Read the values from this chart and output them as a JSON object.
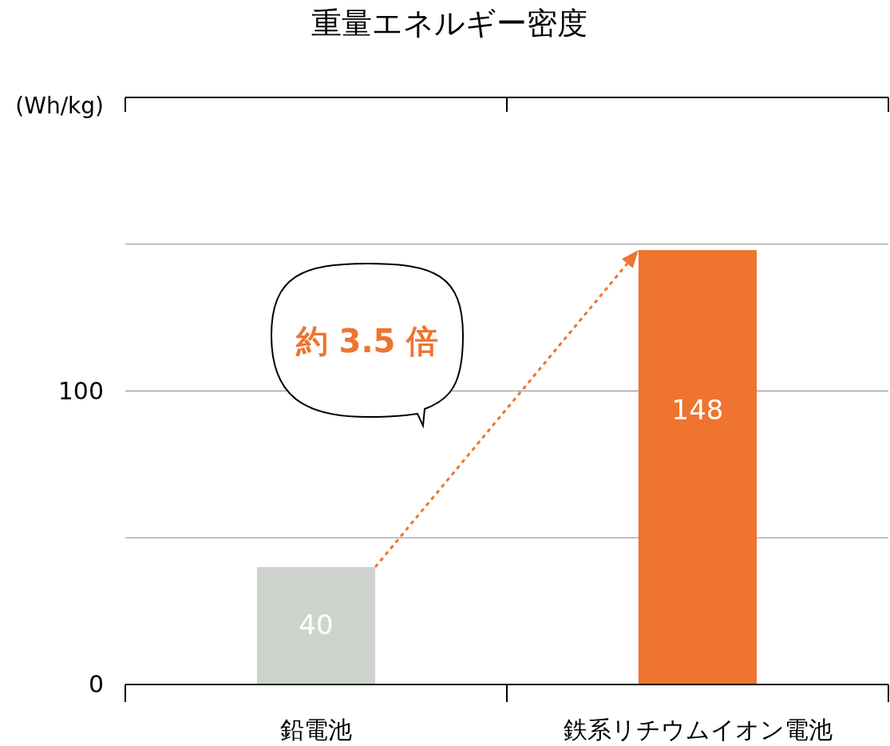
{
  "chart_data": {
    "type": "bar",
    "title": "重量エネルギー密度",
    "ylabel": "(Wh/kg)",
    "categories": [
      "鉛電池",
      "鉄系リチウムイオン電池"
    ],
    "values": [
      40,
      148
    ],
    "colors": [
      "#ced3cd",
      "#ee7430"
    ],
    "ylim": [
      0,
      200
    ],
    "yticks": [
      0,
      {
        "value": 50,
        "label": null
      },
      100,
      {
        "value": 150,
        "label": null
      },
      {
        "value": 200,
        "label": null
      }
    ],
    "grid": "y",
    "data_labels": true,
    "annotations": [
      "約 3.5 倍"
    ]
  }
}
